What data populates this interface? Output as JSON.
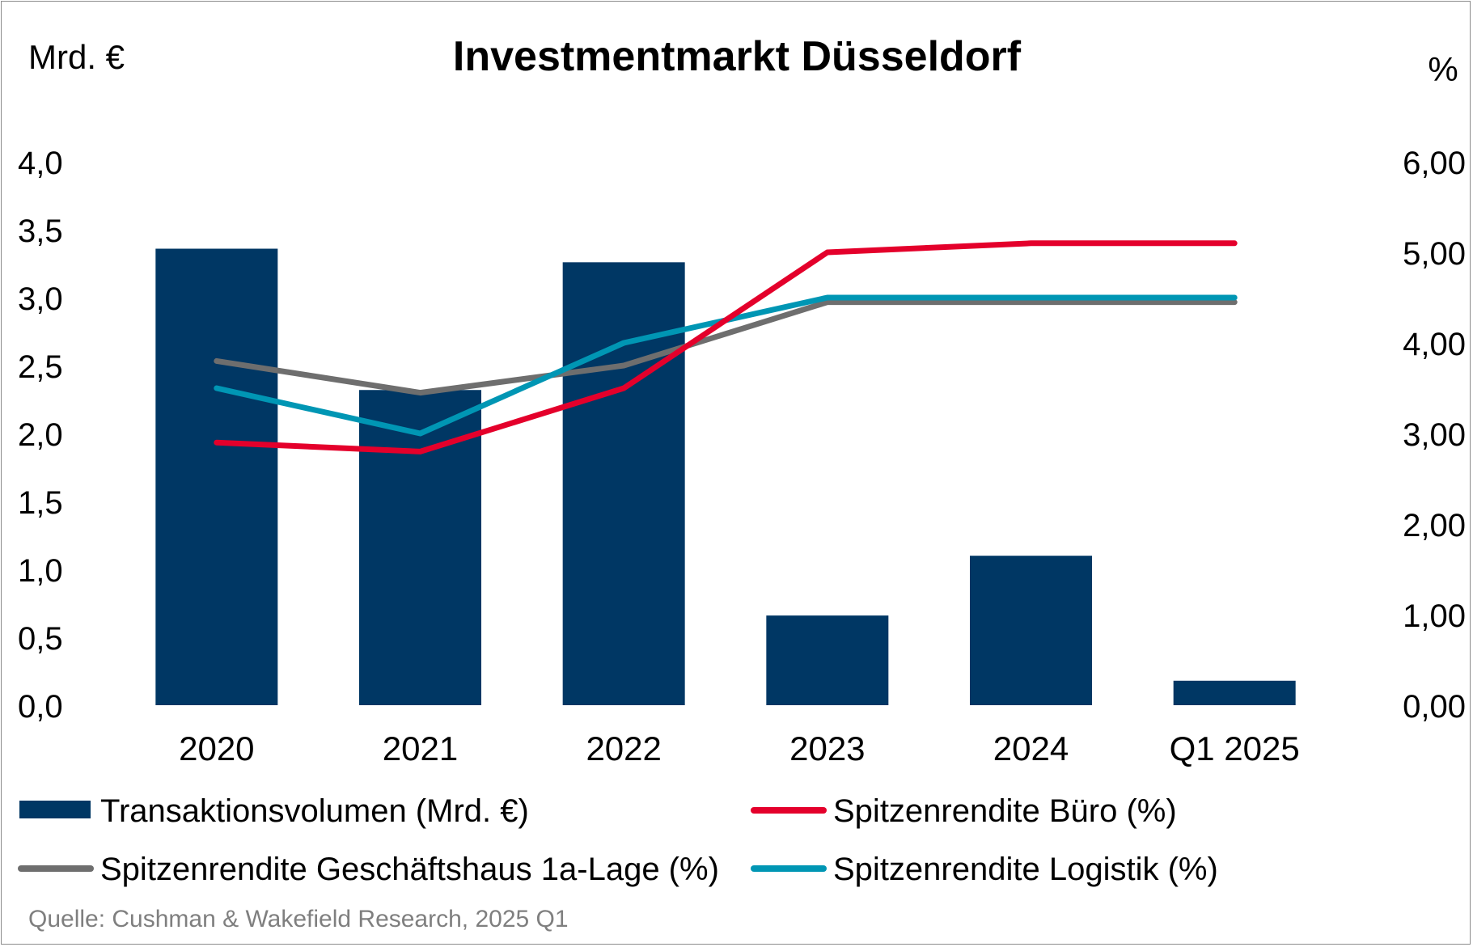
{
  "chart_data": {
    "type": "bar",
    "title": "Investmentmarkt Düsseldorf",
    "left_axis_label": "Mrd. €",
    "right_axis_label": "%",
    "categories": [
      "2020",
      "2021",
      "2022",
      "2023",
      "2024",
      "Q1 2025"
    ],
    "left_ylim": [
      0,
      4
    ],
    "left_ticks": [
      "0,0",
      "0,5",
      "1,0",
      "1,5",
      "2,0",
      "2,5",
      "3,0",
      "3,5",
      "4,0"
    ],
    "right_ylim": [
      0,
      6
    ],
    "right_ticks": [
      "0,00",
      "1,00",
      "2,00",
      "3,00",
      "4,00",
      "5,00",
      "6,00"
    ],
    "grid": false,
    "legend_position": "bottom",
    "series": [
      {
        "name": "Transaktionsvolumen (Mrd. €)",
        "type": "bar",
        "axis": "left",
        "color": "#003764",
        "values": [
          3.36,
          2.32,
          3.26,
          0.66,
          1.1,
          0.18
        ]
      },
      {
        "name": "Spitzenrendite Büro (%)",
        "type": "line",
        "axis": "right",
        "color": "#e4002b",
        "values": [
          2.9,
          2.8,
          3.5,
          5.0,
          5.1,
          5.1
        ]
      },
      {
        "name": "Spitzenrendite Geschäftshaus 1a-Lage (%)",
        "type": "line",
        "axis": "right",
        "color": "#6e6e6e",
        "values": [
          3.8,
          3.45,
          3.75,
          4.45,
          4.45,
          4.45
        ]
      },
      {
        "name": "Spitzenrendite Logistik (%)",
        "type": "line",
        "axis": "right",
        "color": "#0096b4",
        "values": [
          3.5,
          3.0,
          4.0,
          4.5,
          4.5,
          4.5
        ]
      }
    ],
    "source": "Quelle: Cushman & Wakefield Research, 2025 Q1"
  }
}
